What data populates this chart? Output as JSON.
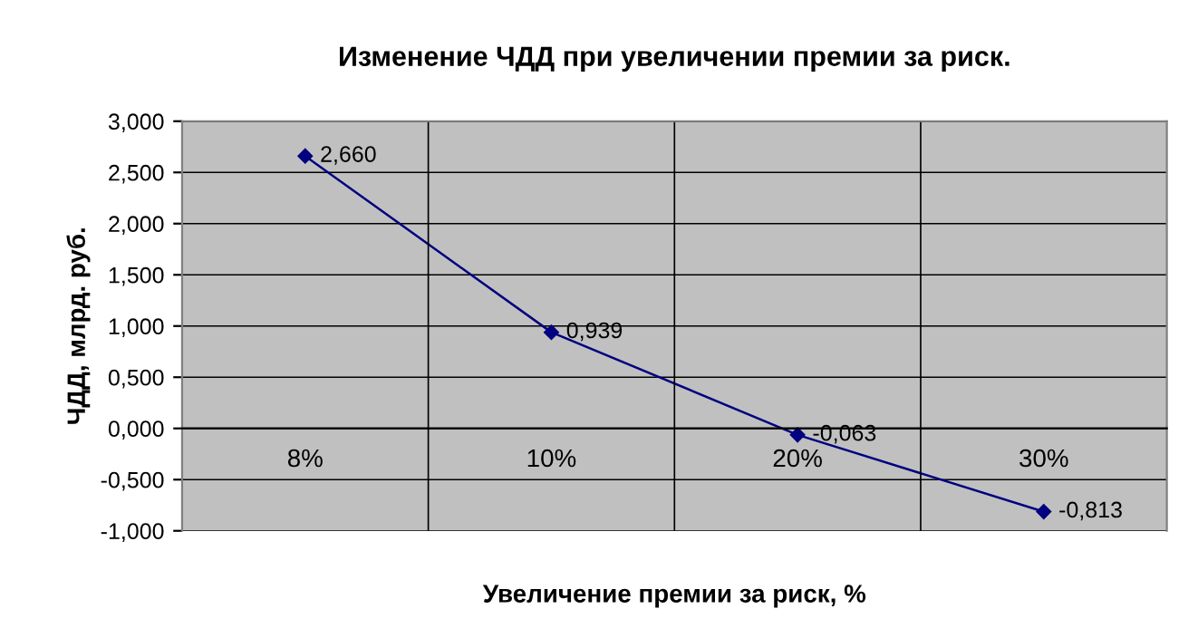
{
  "chart_data": {
    "type": "line",
    "title": "Изменение ЧДД при увеличении премии за риск.",
    "xlabel": "Увеличение премии за риск, %",
    "ylabel": "ЧДД, млрд. руб.",
    "categories": [
      "8%",
      "10%",
      "20%",
      "30%"
    ],
    "series": [
      {
        "color": "#000080",
        "values": [
          2.66,
          0.939,
          -0.063,
          -0.813
        ],
        "value_labels": [
          "2,660",
          "0,939",
          "-0,063",
          "-0,813"
        ]
      }
    ],
    "ylim": [
      -1,
      3
    ],
    "yticks": [
      {
        "value": -1,
        "label": "-1,000"
      },
      {
        "value": -0.5,
        "label": "-0,500"
      },
      {
        "value": 0,
        "label": "0,000"
      },
      {
        "value": 0.5,
        "label": "0,500"
      },
      {
        "value": 1,
        "label": "1,000"
      },
      {
        "value": 1.5,
        "label": "1,500"
      },
      {
        "value": 2,
        "label": "2,000"
      },
      {
        "value": 2.5,
        "label": "2,500"
      },
      {
        "value": 3,
        "label": "3,000"
      }
    ],
    "grid": true,
    "marker": "diamond",
    "line_style": "solid",
    "legend": false
  }
}
